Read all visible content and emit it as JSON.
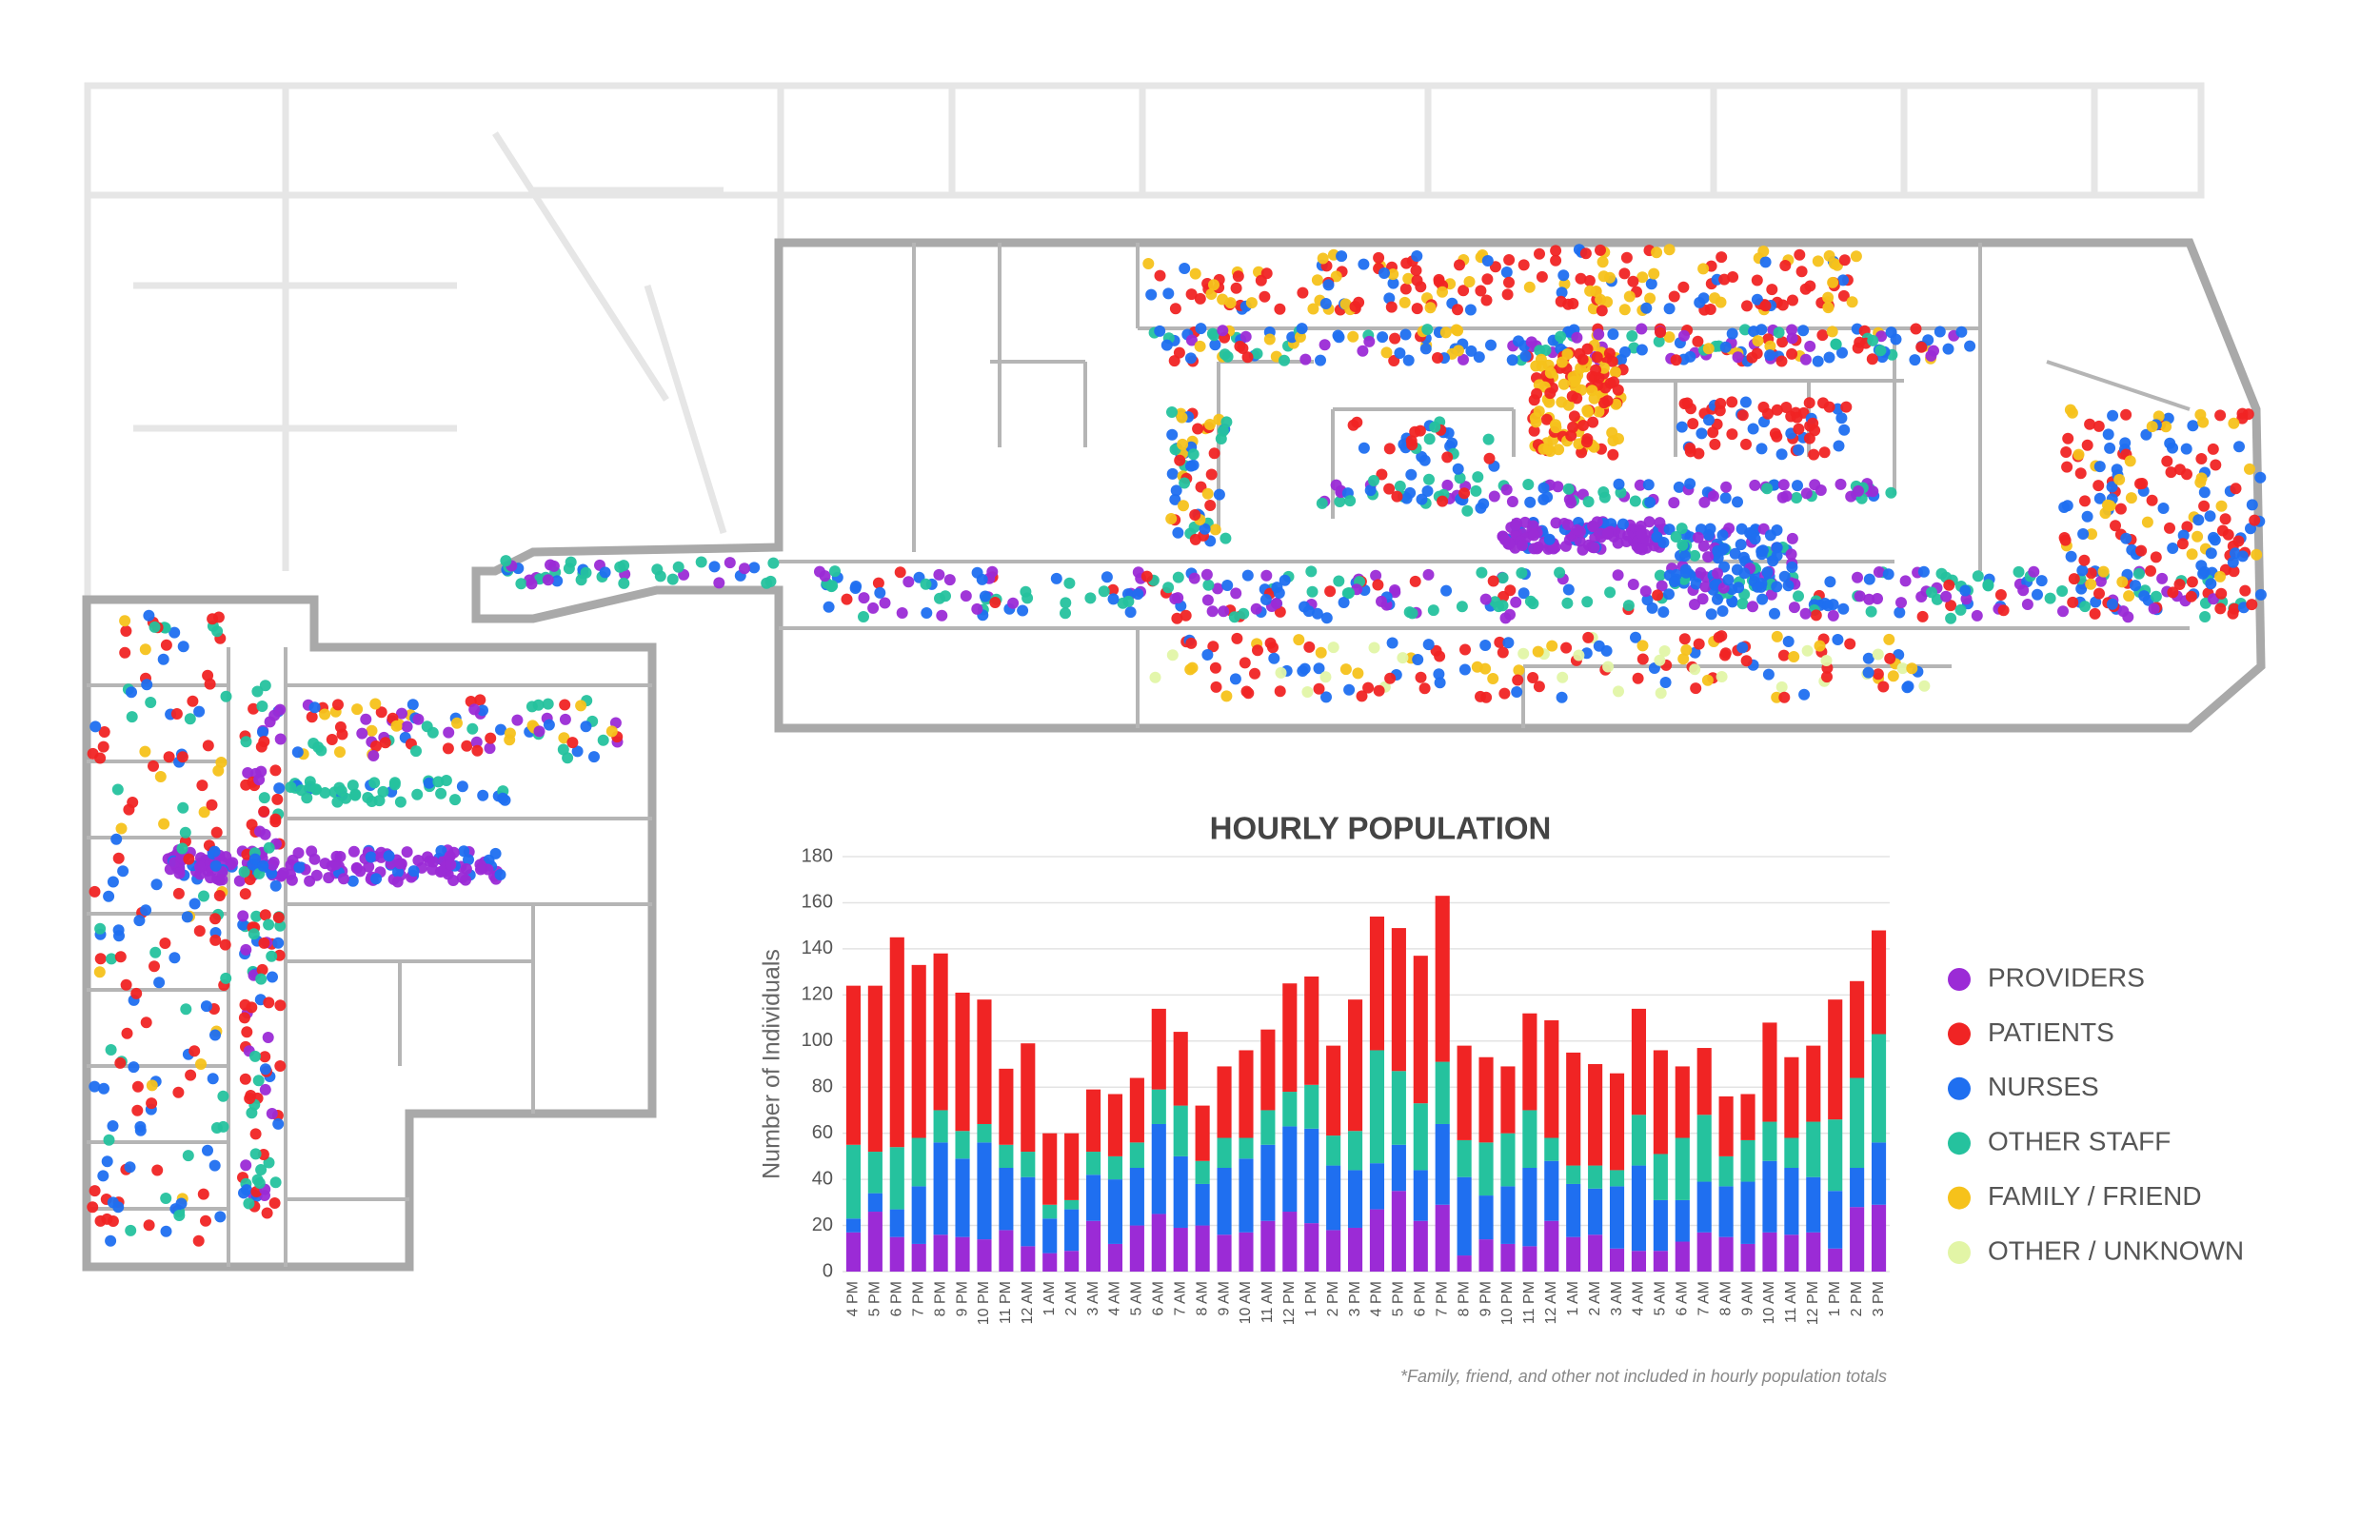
{
  "chart_data": {
    "type": "stacked_bar",
    "title": "HOURLY POPULATION",
    "y_label": "Number of Individuals",
    "footnote": "*Family, friend, and other not included in hourly population totals",
    "categories": [
      "4 PM",
      "5 PM",
      "6 PM",
      "7 PM",
      "8 PM",
      "9 PM",
      "10 PM",
      "11 PM",
      "12 AM",
      "1 AM",
      "2 AM",
      "3 AM",
      "4 AM",
      "5 AM",
      "6 AM",
      "7 AM",
      "8 AM",
      "9 AM",
      "10 AM",
      "11 AM",
      "12 PM",
      "1 PM",
      "2 PM",
      "3 PM",
      "4 PM",
      "5 PM",
      "6 PM",
      "7 PM",
      "8 PM",
      "9 PM",
      "10 PM",
      "11 PM",
      "12 AM",
      "1 AM",
      "2 AM",
      "3 AM",
      "4 AM",
      "5 AM",
      "6 AM",
      "7 AM",
      "8 AM",
      "9 AM",
      "10 AM",
      "11 AM",
      "12 PM",
      "1 PM",
      "2 PM",
      "3 PM"
    ],
    "series": [
      {
        "name": "PROVIDERS",
        "color": "#9b2bd6",
        "values": [
          17,
          26,
          15,
          12,
          16,
          15,
          14,
          18,
          11,
          8,
          9,
          22,
          12,
          20,
          25,
          19,
          20,
          16,
          17,
          22,
          26,
          21,
          18,
          19,
          27,
          35,
          22,
          29,
          7,
          14,
          12,
          11,
          22,
          15,
          16,
          10,
          9,
          9,
          13,
          17,
          15,
          12,
          17,
          16,
          17,
          10,
          28,
          29
        ]
      },
      {
        "name": "PATIENTS",
        "color": "#f02424",
        "values": [
          69,
          72,
          91,
          75,
          68,
          60,
          54,
          33,
          47,
          31,
          29,
          27,
          27,
          28,
          35,
          32,
          24,
          31,
          38,
          35,
          47,
          47,
          39,
          57,
          58,
          62,
          64,
          72,
          41,
          37,
          29,
          42,
          51,
          49,
          44,
          42,
          46,
          45,
          31,
          29,
          26,
          20,
          43,
          35,
          33,
          52,
          42,
          45
        ]
      },
      {
        "name": "NURSES",
        "color": "#1f6ff0",
        "values": [
          6,
          8,
          12,
          25,
          40,
          34,
          42,
          27,
          30,
          15,
          18,
          20,
          28,
          25,
          39,
          31,
          18,
          29,
          32,
          33,
          37,
          41,
          28,
          25,
          20,
          20,
          22,
          35,
          34,
          19,
          25,
          34,
          26,
          23,
          20,
          27,
          37,
          22,
          18,
          22,
          22,
          27,
          31,
          29,
          24,
          25,
          17,
          27
        ]
      },
      {
        "name": "OTHER STAFF",
        "color": "#25c29e",
        "values": [
          32,
          18,
          27,
          21,
          14,
          12,
          8,
          10,
          11,
          6,
          4,
          10,
          10,
          11,
          15,
          22,
          10,
          13,
          9,
          15,
          15,
          19,
          13,
          17,
          49,
          32,
          29,
          27,
          16,
          23,
          23,
          25,
          10,
          8,
          10,
          7,
          22,
          20,
          27,
          29,
          13,
          18,
          17,
          13,
          24,
          31,
          39,
          47
        ]
      }
    ],
    "legend_extra": [
      {
        "name": "FAMILY / FRIEND",
        "color": "#f6c21b"
      },
      {
        "name": "OTHER / UNKNOWN",
        "color": "#e2f5a6"
      }
    ],
    "stack_order": [
      0,
      2,
      3,
      1
    ],
    "ylim": [
      0,
      180
    ],
    "yticks": [
      0,
      20,
      40,
      60,
      80,
      100,
      120,
      140,
      160,
      180
    ],
    "grid": true
  }
}
